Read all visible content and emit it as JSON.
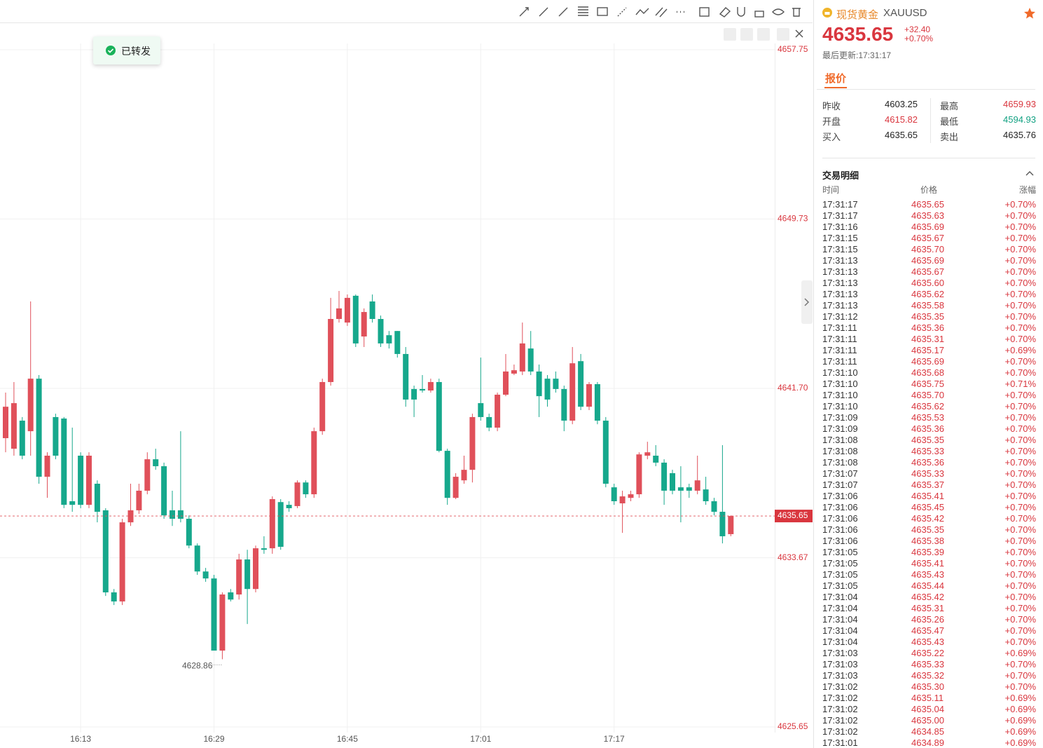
{
  "chart_data": {
    "type": "candlestick",
    "categories": [
      null,
      null,
      null,
      null,
      null,
      null,
      null,
      null,
      null,
      "16:13",
      null,
      null,
      null,
      null,
      null,
      null,
      null,
      null,
      null,
      null,
      null,
      null,
      null,
      null,
      null,
      "16:29",
      null,
      null,
      null,
      null,
      null,
      null,
      null,
      null,
      null,
      null,
      null,
      null,
      null,
      null,
      null,
      "16:45",
      null,
      null,
      null,
      null,
      null,
      null,
      null,
      null,
      null,
      null,
      null,
      null,
      null,
      null,
      null,
      "17:01",
      null,
      null,
      null,
      null,
      null,
      null,
      null,
      null,
      null,
      null,
      null,
      null,
      null,
      null,
      null,
      "17:17",
      null,
      null,
      null,
      null,
      null,
      null,
      null,
      null,
      null,
      null,
      null,
      null,
      null,
      null
    ],
    "open": [
      4639.34,
      4638.84,
      4640.17,
      4639.67,
      4642.16,
      4637.51,
      4640.34,
      4640.27,
      4636.35,
      4638.51,
      4636.18,
      4637.18,
      4635.92,
      4632.03,
      4631.6,
      4635.35,
      4635.92,
      4636.85,
      4638.34,
      4638.01,
      4635.92,
      4635.92,
      4635.52,
      4634.25,
      4633.02,
      4632.69,
      4629.27,
      4632.03,
      4631.93,
      4633.59,
      4632.19,
      4634.12,
      4634.12,
      4636.31,
      4636.18,
      4636.12,
      4637.24,
      4636.68,
      4639.67,
      4642.0,
      4644.99,
      4644.82,
      4646.09,
      4644.16,
      4645.82,
      4644.99,
      4644.22,
      4644.42,
      4643.33,
      4641.67,
      4641.67,
      4641.6,
      4642.0,
      4638.74,
      4636.51,
      4637.34,
      4637.84,
      4641.0,
      4640.34,
      4639.84,
      4641.4,
      4642.4,
      4642.5,
      4643.59,
      4642.5,
      4642.16,
      4642.16,
      4641.67,
      4640.17,
      4642.99,
      4640.83,
      4641.9,
      4640.17,
      4637.01,
      4636.25,
      4636.51,
      4636.68,
      4638.51,
      4638.51,
      4638.18,
      4637.68,
      4637.01,
      4637.01,
      4636.85,
      4636.91,
      4636.35,
      4635.85,
      4634.79
    ],
    "high": [
      4641.5,
      4642.0,
      4640.34,
      4645.82,
      4642.33,
      4638.67,
      4640.5,
      4640.34,
      4639.84,
      4638.67,
      4638.67,
      4637.34,
      4636.02,
      4632.19,
      4635.52,
      4637.18,
      4637.18,
      4638.67,
      4638.84,
      4638.18,
      4636.85,
      4639.67,
      4635.68,
      4634.35,
      4633.19,
      4632.86,
      4632.03,
      4632.19,
      4633.86,
      4634.05,
      4634.25,
      4634.69,
      4636.58,
      4636.45,
      4636.35,
      4637.34,
      4637.34,
      4639.84,
      4642.16,
      4645.99,
      4646.32,
      4646.15,
      4646.15,
      4645.49,
      4646.15,
      4645.15,
      4644.42,
      4644.42,
      4643.66,
      4641.83,
      4642.33,
      4642.16,
      4642.16,
      4638.84,
      4637.68,
      4638.51,
      4640.5,
      4643.16,
      4640.5,
      4641.5,
      4643.33,
      4642.83,
      4644.82,
      4644.42,
      4642.83,
      4642.33,
      4642.5,
      4641.83,
      4643.66,
      4643.33,
      4642.0,
      4642.0,
      4640.34,
      4637.18,
      4636.85,
      4636.85,
      4638.67,
      4639.17,
      4639.01,
      4638.34,
      4637.84,
      4638.01,
      4637.18,
      4638.51,
      4637.51,
      4636.51,
      4639.01,
      4635.68
    ],
    "low": [
      4638.67,
      4638.51,
      4638.34,
      4638.51,
      4637.18,
      4636.51,
      4638.34,
      4636.02,
      4635.85,
      4636.02,
      4636.02,
      4635.35,
      4631.86,
      4631.43,
      4631.43,
      4635.18,
      4635.75,
      4636.68,
      4637.84,
      4635.52,
      4635.18,
      4635.35,
      4634.12,
      4632.86,
      4632.53,
      4629.27,
      4628.86,
      4631.6,
      4631.69,
      4630.53,
      4632.03,
      4633.86,
      4633.86,
      4634.05,
      4635.85,
      4636.02,
      4636.51,
      4636.51,
      4639.5,
      4641.83,
      4644.82,
      4644.66,
      4643.66,
      4643.66,
      4644.82,
      4643.66,
      4643.59,
      4643.16,
      4640.83,
      4640.34,
      4641.5,
      4641.5,
      4638.67,
      4636.18,
      4636.45,
      4637.18,
      4637.24,
      4640.17,
      4639.67,
      4639.67,
      4641.33,
      4642.33,
      4642.33,
      4642.33,
      4640.34,
      4640.83,
      4641.5,
      4639.67,
      4640.0,
      4640.67,
      4640.67,
      4640.0,
      4637.01,
      4636.18,
      4634.85,
      4636.35,
      4636.51,
      4638.34,
      4638.01,
      4636.18,
      4636.68,
      4635.35,
      4636.51,
      4636.68,
      4636.18,
      4635.68,
      4634.35,
      4634.69
    ],
    "close": [
      4640.83,
      4641.0,
      4638.51,
      4642.16,
      4637.51,
      4638.51,
      4638.51,
      4636.18,
      4636.18,
      4636.18,
      4638.51,
      4635.85,
      4632.03,
      4631.6,
      4635.35,
      4635.92,
      4636.85,
      4638.34,
      4638.01,
      4635.68,
      4635.52,
      4635.52,
      4634.25,
      4633.02,
      4632.69,
      4629.27,
      4631.93,
      4631.69,
      4633.59,
      4632.19,
      4634.12,
      4634.05,
      4636.45,
      4634.19,
      4636.02,
      4637.24,
      4636.68,
      4639.67,
      4642.0,
      4644.99,
      4645.49,
      4645.99,
      4643.83,
      4645.32,
      4644.99,
      4643.83,
      4643.83,
      4643.33,
      4641.17,
      4641.17,
      4641.6,
      4642.0,
      4638.74,
      4636.51,
      4637.51,
      4637.84,
      4640.34,
      4640.34,
      4639.84,
      4641.4,
      4642.5,
      4642.56,
      4643.83,
      4642.5,
      4641.33,
      4641.17,
      4641.67,
      4640.17,
      4642.89,
      4640.83,
      4641.9,
      4640.17,
      4637.18,
      4636.35,
      4636.58,
      4636.68,
      4638.57,
      4638.67,
      4638.18,
      4636.85,
      4636.85,
      4636.85,
      4636.85,
      4637.34,
      4636.35,
      4635.85,
      4634.69,
      4635.65
    ],
    "up_color": "#e0505a",
    "down_color": "#16a88c",
    "ylim": [
      4625.65,
      4657.75
    ],
    "yticks": [
      4625.65,
      4633.67,
      {
        "value": 4641.7,
        "label": "4641.70"
      },
      4649.73,
      4657.75
    ],
    "grid": true,
    "last_price": 4635.65,
    "low_label": 4628.86
  },
  "toast": "已转发",
  "header": {
    "name": "现货黄金",
    "symbol": "XAUUSD",
    "price": "4635.65",
    "change": "+32.40",
    "change_pct": "+0.70%",
    "updated": "最后更新:17:31:17"
  },
  "tab": "报价",
  "quote": [
    {
      "label": "昨收",
      "value": "4603.25",
      "color": "#222222"
    },
    {
      "label": "最高",
      "value": "4659.93",
      "color": "#d9363e"
    },
    {
      "label": "开盘",
      "value": "4615.82",
      "color": "#d9363e"
    },
    {
      "label": "最低",
      "value": "4594.93",
      "color": "#12a182"
    },
    {
      "label": "买入",
      "value": "4635.65",
      "color": "#222222"
    },
    {
      "label": "卖出",
      "value": "4635.76",
      "color": "#222222"
    }
  ],
  "trades": {
    "title": "交易明细",
    "columns": [
      "时间",
      "价格",
      "涨幅"
    ],
    "rows": [
      [
        "17:31:17",
        "4635.65",
        "+0.70%"
      ],
      [
        "17:31:17",
        "4635.63",
        "+0.70%"
      ],
      [
        "17:31:16",
        "4635.69",
        "+0.70%"
      ],
      [
        "17:31:15",
        "4635.67",
        "+0.70%"
      ],
      [
        "17:31:15",
        "4635.70",
        "+0.70%"
      ],
      [
        "17:31:13",
        "4635.69",
        "+0.70%"
      ],
      [
        "17:31:13",
        "4635.67",
        "+0.70%"
      ],
      [
        "17:31:13",
        "4635.60",
        "+0.70%"
      ],
      [
        "17:31:13",
        "4635.62",
        "+0.70%"
      ],
      [
        "17:31:13",
        "4635.58",
        "+0.70%"
      ],
      [
        "17:31:12",
        "4635.35",
        "+0.70%"
      ],
      [
        "17:31:11",
        "4635.36",
        "+0.70%"
      ],
      [
        "17:31:11",
        "4635.31",
        "+0.70%"
      ],
      [
        "17:31:11",
        "4635.17",
        "+0.69%"
      ],
      [
        "17:31:11",
        "4635.69",
        "+0.70%"
      ],
      [
        "17:31:10",
        "4635.68",
        "+0.70%"
      ],
      [
        "17:31:10",
        "4635.75",
        "+0.71%"
      ],
      [
        "17:31:10",
        "4635.70",
        "+0.70%"
      ],
      [
        "17:31:10",
        "4635.62",
        "+0.70%"
      ],
      [
        "17:31:09",
        "4635.53",
        "+0.70%"
      ],
      [
        "17:31:09",
        "4635.36",
        "+0.70%"
      ],
      [
        "17:31:08",
        "4635.35",
        "+0.70%"
      ],
      [
        "17:31:08",
        "4635.33",
        "+0.70%"
      ],
      [
        "17:31:08",
        "4635.36",
        "+0.70%"
      ],
      [
        "17:31:07",
        "4635.33",
        "+0.70%"
      ],
      [
        "17:31:07",
        "4635.37",
        "+0.70%"
      ],
      [
        "17:31:06",
        "4635.41",
        "+0.70%"
      ],
      [
        "17:31:06",
        "4635.45",
        "+0.70%"
      ],
      [
        "17:31:06",
        "4635.42",
        "+0.70%"
      ],
      [
        "17:31:06",
        "4635.35",
        "+0.70%"
      ],
      [
        "17:31:06",
        "4635.38",
        "+0.70%"
      ],
      [
        "17:31:05",
        "4635.39",
        "+0.70%"
      ],
      [
        "17:31:05",
        "4635.41",
        "+0.70%"
      ],
      [
        "17:31:05",
        "4635.43",
        "+0.70%"
      ],
      [
        "17:31:05",
        "4635.44",
        "+0.70%"
      ],
      [
        "17:31:04",
        "4635.42",
        "+0.70%"
      ],
      [
        "17:31:04",
        "4635.31",
        "+0.70%"
      ],
      [
        "17:31:04",
        "4635.26",
        "+0.70%"
      ],
      [
        "17:31:04",
        "4635.47",
        "+0.70%"
      ],
      [
        "17:31:04",
        "4635.43",
        "+0.70%"
      ],
      [
        "17:31:03",
        "4635.22",
        "+0.69%"
      ],
      [
        "17:31:03",
        "4635.33",
        "+0.70%"
      ],
      [
        "17:31:03",
        "4635.32",
        "+0.70%"
      ],
      [
        "17:31:02",
        "4635.30",
        "+0.70%"
      ],
      [
        "17:31:02",
        "4635.11",
        "+0.69%"
      ],
      [
        "17:31:02",
        "4635.04",
        "+0.69%"
      ],
      [
        "17:31:02",
        "4635.00",
        "+0.69%"
      ],
      [
        "17:31:02",
        "4634.85",
        "+0.69%"
      ],
      [
        "17:31:01",
        "4634.89",
        "+0.69%"
      ]
    ]
  }
}
